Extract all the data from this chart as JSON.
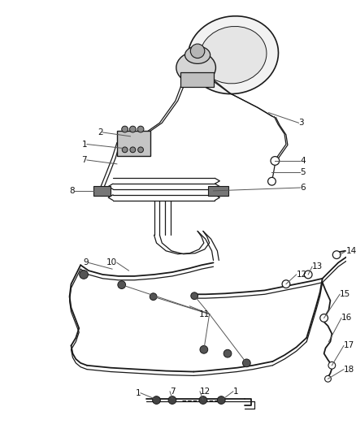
{
  "bg_color": "#ffffff",
  "line_color": "#1a1a1a",
  "text_color": "#111111",
  "leader_color": "#555555",
  "fig_width": 4.38,
  "fig_height": 5.33,
  "dpi": 100,
  "lw_main": 1.3,
  "lw_thin": 0.9,
  "lw_leader": 0.7,
  "fontsize": 7.5
}
